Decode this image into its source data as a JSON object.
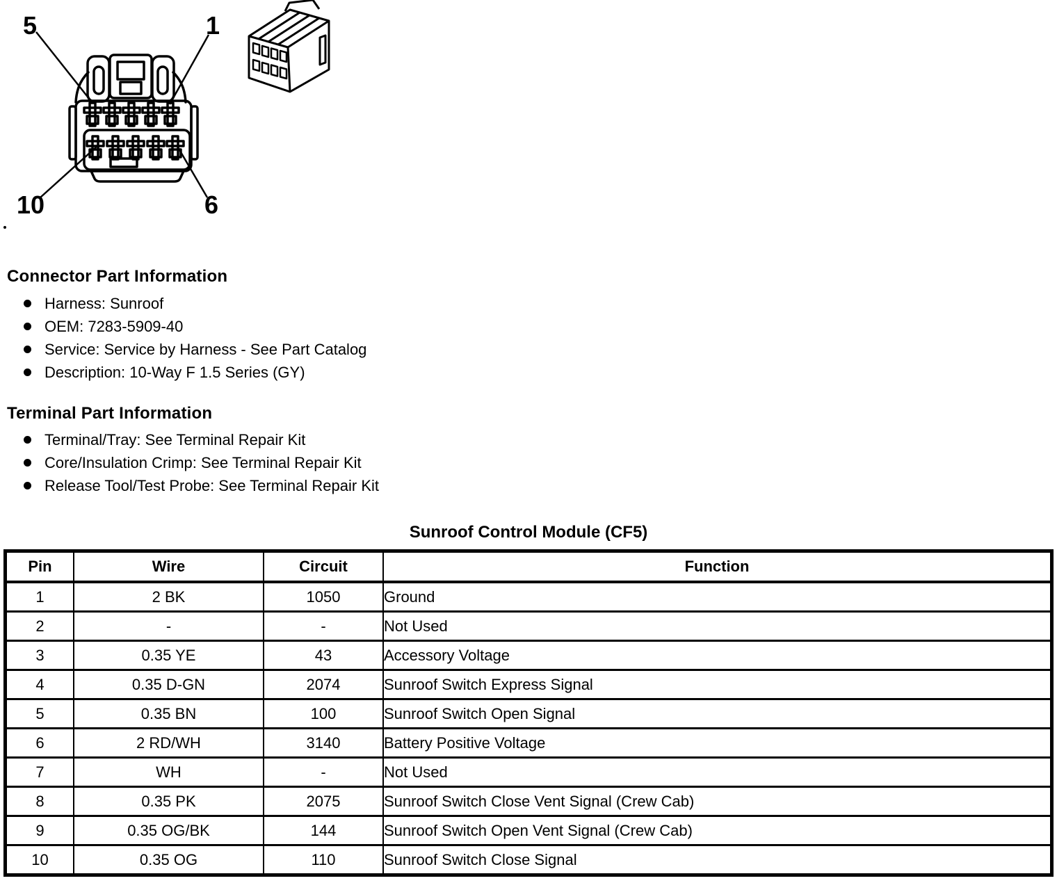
{
  "page": {
    "background": "#ffffff",
    "text_color": "#000000"
  },
  "figure": {
    "labels": {
      "top_left": "5",
      "top_right": "1",
      "bottom_left": "10",
      "bottom_right": "6"
    },
    "stray_mark": "."
  },
  "sections": [
    {
      "heading": "Connector Part Information",
      "items": [
        "Harness: Sunroof",
        "OEM: 7283-5909-40",
        "Service: Service by Harness - See Part Catalog",
        "Description: 10-Way F 1.5 Series (GY)"
      ]
    },
    {
      "heading": "Terminal Part Information",
      "items": [
        "Terminal/Tray: See Terminal Repair Kit",
        "Core/Insulation Crimp: See Terminal Repair Kit",
        "Release Tool/Test Probe: See Terminal Repair Kit"
      ]
    }
  ],
  "table": {
    "title": "Sunroof Control Module (CF5)",
    "columns": [
      "Pin",
      "Wire",
      "Circuit",
      "Function"
    ],
    "rows": [
      [
        "1",
        "2 BK",
        "1050",
        "Ground"
      ],
      [
        "2",
        "-",
        "-",
        "Not Used"
      ],
      [
        "3",
        "0.35 YE",
        "43",
        "Accessory Voltage"
      ],
      [
        "4",
        "0.35 D-GN",
        "2074",
        "Sunroof Switch Express Signal"
      ],
      [
        "5",
        "0.35 BN",
        "100",
        "Sunroof Switch Open Signal"
      ],
      [
        "6",
        "2 RD/WH",
        "3140",
        "Battery Positive Voltage"
      ],
      [
        "7",
        "WH",
        "-",
        "Not Used"
      ],
      [
        "8",
        "0.35 PK",
        "2075",
        "Sunroof Switch Close Vent Signal (Crew Cab)"
      ],
      [
        "9",
        "0.35 OG/BK",
        "144",
        "Sunroof Switch Open Vent Signal (Crew Cab)"
      ],
      [
        "10",
        "0.35 OG",
        "110",
        "Sunroof Switch Close Signal"
      ]
    ]
  }
}
